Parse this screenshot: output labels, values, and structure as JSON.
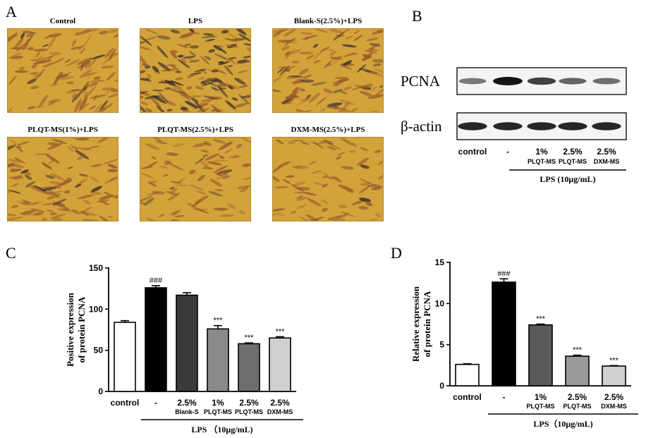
{
  "panel_letters": {
    "a": "A",
    "b": "B",
    "c": "C",
    "d": "D"
  },
  "panel_a": {
    "images": [
      {
        "label": "Control",
        "density": 0.55,
        "dark": 0.15
      },
      {
        "label": "LPS",
        "density": 0.95,
        "dark": 0.55
      },
      {
        "label": "Blank-S(2.5%)+LPS",
        "density": 0.7,
        "dark": 0.25
      },
      {
        "label": "PLQT-MS(1%)+LPS",
        "density": 0.6,
        "dark": 0.12
      },
      {
        "label": "PLQT-MS(2.5%)+LPS",
        "density": 0.35,
        "dark": 0.05
      },
      {
        "label": "DXM-MS(2.5%)+LPS",
        "density": 0.35,
        "dark": 0.05
      }
    ],
    "colors": {
      "background": "#d2a33a",
      "cell": "#9b5a2b",
      "dark_cell": "#3a2f2c"
    }
  },
  "panel_b": {
    "rows": [
      {
        "label": "PCNA",
        "band_intensity": [
          0.45,
          1.0,
          0.75,
          0.55,
          0.5
        ]
      },
      {
        "label": "β-actin",
        "band_intensity": [
          0.9,
          0.9,
          0.9,
          0.9,
          0.9
        ]
      }
    ],
    "lane_labels": [
      {
        "top": "control",
        "bottom": ""
      },
      {
        "top": "-",
        "bottom": ""
      },
      {
        "top": "1%",
        "bottom": "PLQT-MS"
      },
      {
        "top": "2.5%",
        "bottom": "PLQT-MS"
      },
      {
        "top": "2.5%",
        "bottom": "DXM-MS"
      }
    ],
    "lps_label": "LPS (10μg/mL)"
  },
  "chart_data": [
    {
      "type": "bar",
      "panel": "C",
      "ylabel_lines": [
        "Positive expression",
        "of protein PCNA"
      ],
      "ylim": [
        0,
        150
      ],
      "yticks": [
        0,
        50,
        100,
        150
      ],
      "categories": [
        {
          "top": "control",
          "bottom": ""
        },
        {
          "top": "-",
          "bottom": ""
        },
        {
          "top": "2.5%",
          "bottom": "Blank-S"
        },
        {
          "top": "1%",
          "bottom": "PLQT-MS"
        },
        {
          "top": "2.5%",
          "bottom": "PLQT-MS"
        },
        {
          "top": "2.5%",
          "bottom": "DXM-MS"
        }
      ],
      "values": [
        84,
        126,
        117,
        76,
        58,
        65
      ],
      "errors": [
        2,
        2.5,
        3,
        4,
        1,
        1.5
      ],
      "annotations": [
        "",
        "###",
        "",
        "***",
        "***",
        "***"
      ],
      "colors": [
        "#ffffff",
        "#000000",
        "#3a3a3a",
        "#8a8a8a",
        "#6e6e6e",
        "#d0d0d0"
      ],
      "lps_label": "LPS （10μg/mL)"
    },
    {
      "type": "bar",
      "panel": "D",
      "ylabel_lines": [
        "Relative expression",
        "of protein PCNA"
      ],
      "ylim": [
        0,
        15
      ],
      "yticks": [
        0,
        5,
        10,
        15
      ],
      "categories": [
        {
          "top": "control",
          "bottom": ""
        },
        {
          "top": "-",
          "bottom": ""
        },
        {
          "top": "1%",
          "bottom": "PLQT-MS"
        },
        {
          "top": "2.5%",
          "bottom": "PLQT-MS"
        },
        {
          "top": "2.5%",
          "bottom": "DXM-MS"
        }
      ],
      "values": [
        2.6,
        12.6,
        7.4,
        3.6,
        2.4
      ],
      "errors": [
        0.08,
        0.4,
        0.1,
        0.12,
        0.06
      ],
      "annotations": [
        "",
        "###",
        "***",
        "***",
        "***"
      ],
      "colors": [
        "#ffffff",
        "#000000",
        "#5a5a5a",
        "#9a9a9a",
        "#d0d0d0"
      ],
      "lps_label": "LPS（10μg/mL)"
    }
  ]
}
